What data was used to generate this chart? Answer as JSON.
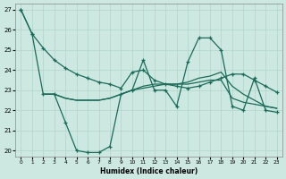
{
  "xlabel": "Humidex (Indice chaleur)",
  "bg_color": "#cce8e0",
  "grid_color": "#b0d4c8",
  "line_color": "#1a6b5a",
  "xlim": [
    -0.5,
    23.5
  ],
  "ylim": [
    19.7,
    27.3
  ],
  "xticks": [
    0,
    1,
    2,
    3,
    4,
    5,
    6,
    7,
    8,
    9,
    10,
    11,
    12,
    13,
    14,
    15,
    16,
    17,
    18,
    19,
    20,
    21,
    22,
    23
  ],
  "yticks": [
    20,
    21,
    22,
    23,
    24,
    25,
    26,
    27
  ],
  "line1_x": [
    0,
    1,
    2,
    3,
    4,
    5,
    6,
    7,
    8,
    9,
    10,
    11,
    12,
    13,
    14,
    15,
    16,
    17,
    18,
    19,
    20,
    21,
    22,
    23
  ],
  "line1_y": [
    27,
    25.8,
    25.1,
    24.5,
    24.1,
    23.8,
    23.6,
    23.4,
    23.3,
    23.1,
    23.9,
    24.0,
    23.5,
    23.3,
    23.2,
    23.1,
    23.2,
    23.4,
    23.6,
    23.8,
    23.8,
    23.5,
    23.2,
    22.9
  ],
  "line2_x": [
    2,
    3,
    4,
    5,
    6,
    7,
    8,
    9,
    10,
    11,
    12,
    13,
    14,
    15,
    16,
    17,
    18,
    19,
    20,
    21,
    22,
    23
  ],
  "line2_y": [
    22.8,
    22.8,
    22.6,
    22.5,
    22.5,
    22.5,
    22.6,
    22.8,
    23.0,
    23.1,
    23.2,
    23.3,
    23.3,
    23.3,
    23.4,
    23.5,
    23.5,
    22.6,
    22.4,
    22.3,
    22.2,
    22.1
  ],
  "line3_x": [
    2,
    3,
    4,
    5,
    6,
    7,
    8,
    9,
    10,
    11,
    12,
    13,
    14,
    15,
    16,
    17,
    18,
    19,
    20,
    21,
    22,
    23
  ],
  "line3_y": [
    22.8,
    22.8,
    22.6,
    22.5,
    22.5,
    22.5,
    22.6,
    22.8,
    23.0,
    23.2,
    23.3,
    23.3,
    23.3,
    23.4,
    23.6,
    23.7,
    23.9,
    23.2,
    22.8,
    22.5,
    22.2,
    22.1
  ],
  "line4_x": [
    0,
    1,
    2,
    3,
    4,
    5,
    6,
    7,
    8,
    9,
    10,
    11,
    12,
    13,
    14,
    15,
    16,
    17,
    18,
    19,
    20,
    21,
    22,
    23
  ],
  "line4_y": [
    27,
    25.8,
    22.8,
    22.8,
    21.4,
    20.0,
    19.9,
    19.9,
    20.2,
    22.8,
    23.0,
    24.5,
    23.0,
    23.0,
    22.2,
    24.4,
    25.6,
    25.6,
    25.0,
    22.2,
    22.0,
    23.6,
    22.0,
    21.9
  ]
}
